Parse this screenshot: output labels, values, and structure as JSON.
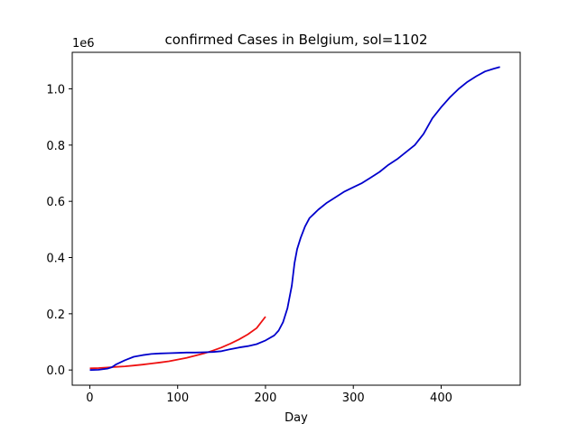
{
  "chart_data": {
    "type": "line",
    "title": "confirmed Cases in Belgium, sol=1102",
    "xlabel": "Day",
    "ylabel": "",
    "y_offset_label": "1e6",
    "xlim": [
      -20,
      490
    ],
    "ylim": [
      -0.054,
      1.13
    ],
    "grid": false,
    "x_ticks": [
      0,
      100,
      200,
      300,
      400
    ],
    "x_tick_labels": [
      "0",
      "100",
      "200",
      "300",
      "400"
    ],
    "y_ticks": [
      0.0,
      0.2,
      0.4,
      0.6,
      0.8,
      1.0
    ],
    "y_tick_labels": [
      "0.0",
      "0.2",
      "0.4",
      "0.6",
      "0.8",
      "1.0"
    ],
    "series": [
      {
        "color": "#ee1111",
        "x": [
          0,
          10,
          20,
          30,
          40,
          50,
          60,
          70,
          80,
          90,
          100,
          110,
          120,
          130,
          140,
          150,
          160,
          170,
          180,
          190,
          200
        ],
        "y": [
          0.006,
          0.007,
          0.009,
          0.011,
          0.013,
          0.016,
          0.019,
          0.023,
          0.027,
          0.031,
          0.037,
          0.043,
          0.051,
          0.059,
          0.069,
          0.08,
          0.094,
          0.109,
          0.127,
          0.149,
          0.19
        ]
      },
      {
        "color": "#0000cc",
        "x": [
          0,
          10,
          20,
          25,
          30,
          40,
          50,
          55,
          60,
          70,
          80,
          90,
          100,
          110,
          120,
          130,
          140,
          150,
          160,
          170,
          180,
          190,
          200,
          210,
          215,
          220,
          225,
          230,
          233,
          236,
          240,
          245,
          250,
          255,
          260,
          270,
          280,
          290,
          300,
          310,
          320,
          330,
          340,
          350,
          360,
          370,
          380,
          390,
          400,
          410,
          420,
          430,
          440,
          450,
          460,
          467
        ],
        "y": [
          0.0,
          0.001,
          0.005,
          0.01,
          0.02,
          0.035,
          0.047,
          0.05,
          0.053,
          0.057,
          0.059,
          0.06,
          0.061,
          0.062,
          0.062,
          0.063,
          0.064,
          0.067,
          0.074,
          0.08,
          0.085,
          0.092,
          0.105,
          0.123,
          0.14,
          0.17,
          0.22,
          0.3,
          0.38,
          0.43,
          0.47,
          0.51,
          0.54,
          0.555,
          0.57,
          0.595,
          0.615,
          0.635,
          0.65,
          0.665,
          0.685,
          0.705,
          0.73,
          0.75,
          0.775,
          0.8,
          0.84,
          0.895,
          0.935,
          0.97,
          1.0,
          1.025,
          1.045,
          1.062,
          1.072,
          1.078
        ]
      }
    ]
  }
}
